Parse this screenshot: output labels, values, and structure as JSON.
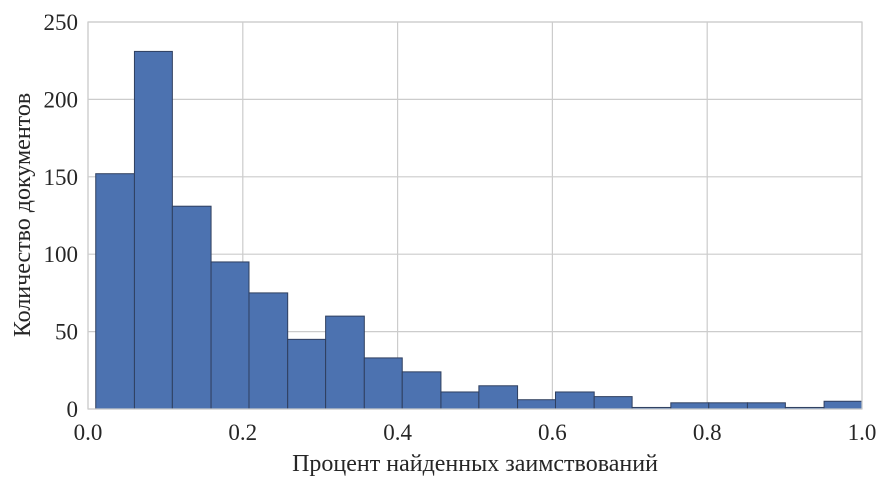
{
  "colors": {
    "bar": "#4c72b0",
    "grid": "#cccccc",
    "background": "#ffffff"
  },
  "chart_data": {
    "type": "bar",
    "title": "",
    "xlabel": "Процент найденных заимствований",
    "ylabel": "Количество документов",
    "xlim": [
      0.0,
      1.0
    ],
    "ylim": [
      0,
      250
    ],
    "xticks": [
      0.0,
      0.2,
      0.4,
      0.6,
      0.8,
      1.0
    ],
    "xtick_labels": [
      "0.0",
      "0.2",
      "0.4",
      "0.6",
      "0.8",
      "1.0"
    ],
    "yticks": [
      0,
      50,
      100,
      150,
      200,
      250
    ],
    "ytick_labels": [
      "0",
      "50",
      "100",
      "150",
      "200",
      "250"
    ],
    "grid": true,
    "bins": [
      {
        "x0": 0.01,
        "x1": 0.06,
        "count": 152
      },
      {
        "x0": 0.06,
        "x1": 0.109,
        "count": 231
      },
      {
        "x0": 0.109,
        "x1": 0.159,
        "count": 131
      },
      {
        "x0": 0.159,
        "x1": 0.208,
        "count": 95
      },
      {
        "x0": 0.208,
        "x1": 0.258,
        "count": 75
      },
      {
        "x0": 0.258,
        "x1": 0.307,
        "count": 45
      },
      {
        "x0": 0.307,
        "x1": 0.357,
        "count": 60
      },
      {
        "x0": 0.357,
        "x1": 0.406,
        "count": 33
      },
      {
        "x0": 0.406,
        "x1": 0.456,
        "count": 24
      },
      {
        "x0": 0.456,
        "x1": 0.505,
        "count": 11
      },
      {
        "x0": 0.505,
        "x1": 0.555,
        "count": 15
      },
      {
        "x0": 0.555,
        "x1": 0.604,
        "count": 6
      },
      {
        "x0": 0.604,
        "x1": 0.654,
        "count": 11
      },
      {
        "x0": 0.654,
        "x1": 0.703,
        "count": 8
      },
      {
        "x0": 0.703,
        "x1": 0.753,
        "count": 1
      },
      {
        "x0": 0.753,
        "x1": 0.802,
        "count": 4
      },
      {
        "x0": 0.802,
        "x1": 0.852,
        "count": 4
      },
      {
        "x0": 0.852,
        "x1": 0.901,
        "count": 4
      },
      {
        "x0": 0.901,
        "x1": 0.951,
        "count": 1
      },
      {
        "x0": 0.951,
        "x1": 1.0,
        "count": 5
      }
    ]
  }
}
